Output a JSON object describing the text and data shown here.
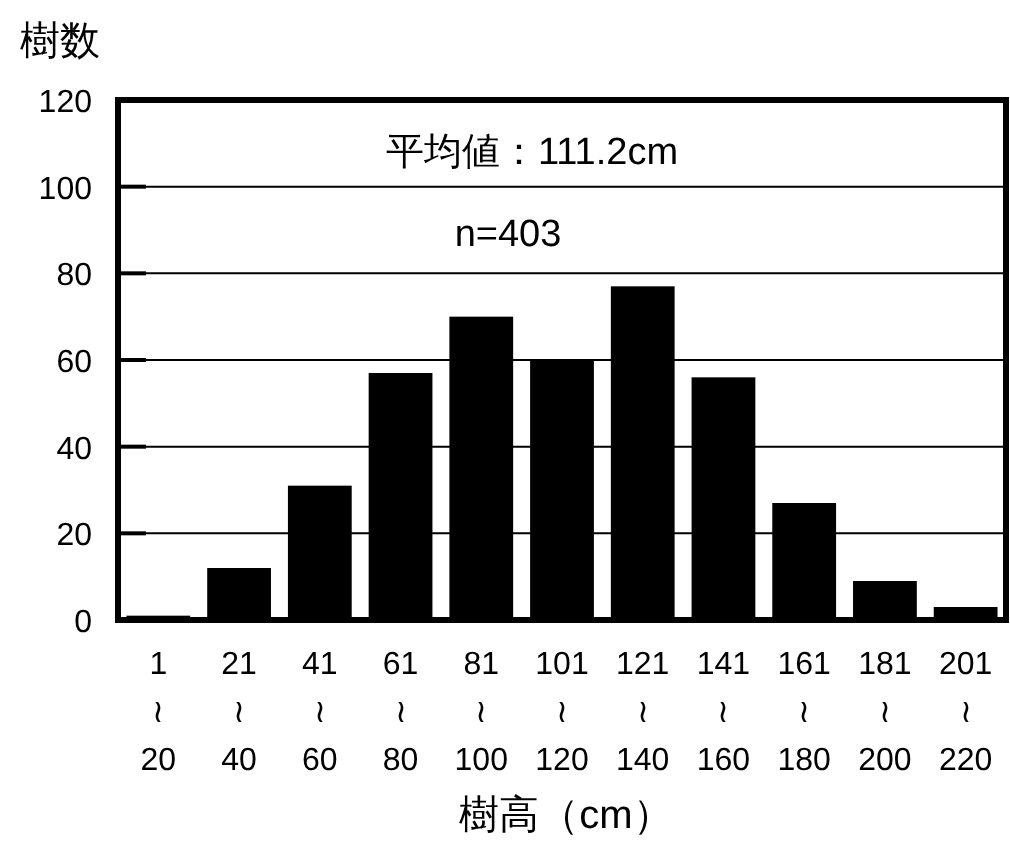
{
  "chart_data": {
    "type": "bar",
    "categories": [
      "1\n≀\n20",
      "21\n≀\n40",
      "41\n≀\n60",
      "61\n≀\n80",
      "81\n≀\n100",
      "101\n≀\n120",
      "121\n≀\n140",
      "141\n≀\n160",
      "161\n≀\n180",
      "181\n≀\n200",
      "201\n≀\n220"
    ],
    "values": [
      1,
      12,
      31,
      57,
      70,
      60,
      77,
      56,
      27,
      9,
      3
    ],
    "color": "#000000",
    "ylabel": "樹数",
    "xlabel": "樹高（cm）",
    "ylim": [
      0,
      120
    ],
    "yticks": [
      0,
      20,
      40,
      60,
      80,
      100,
      120
    ],
    "grid": "y",
    "annotations": [
      "平均値：111.2cm",
      "n=403"
    ]
  }
}
